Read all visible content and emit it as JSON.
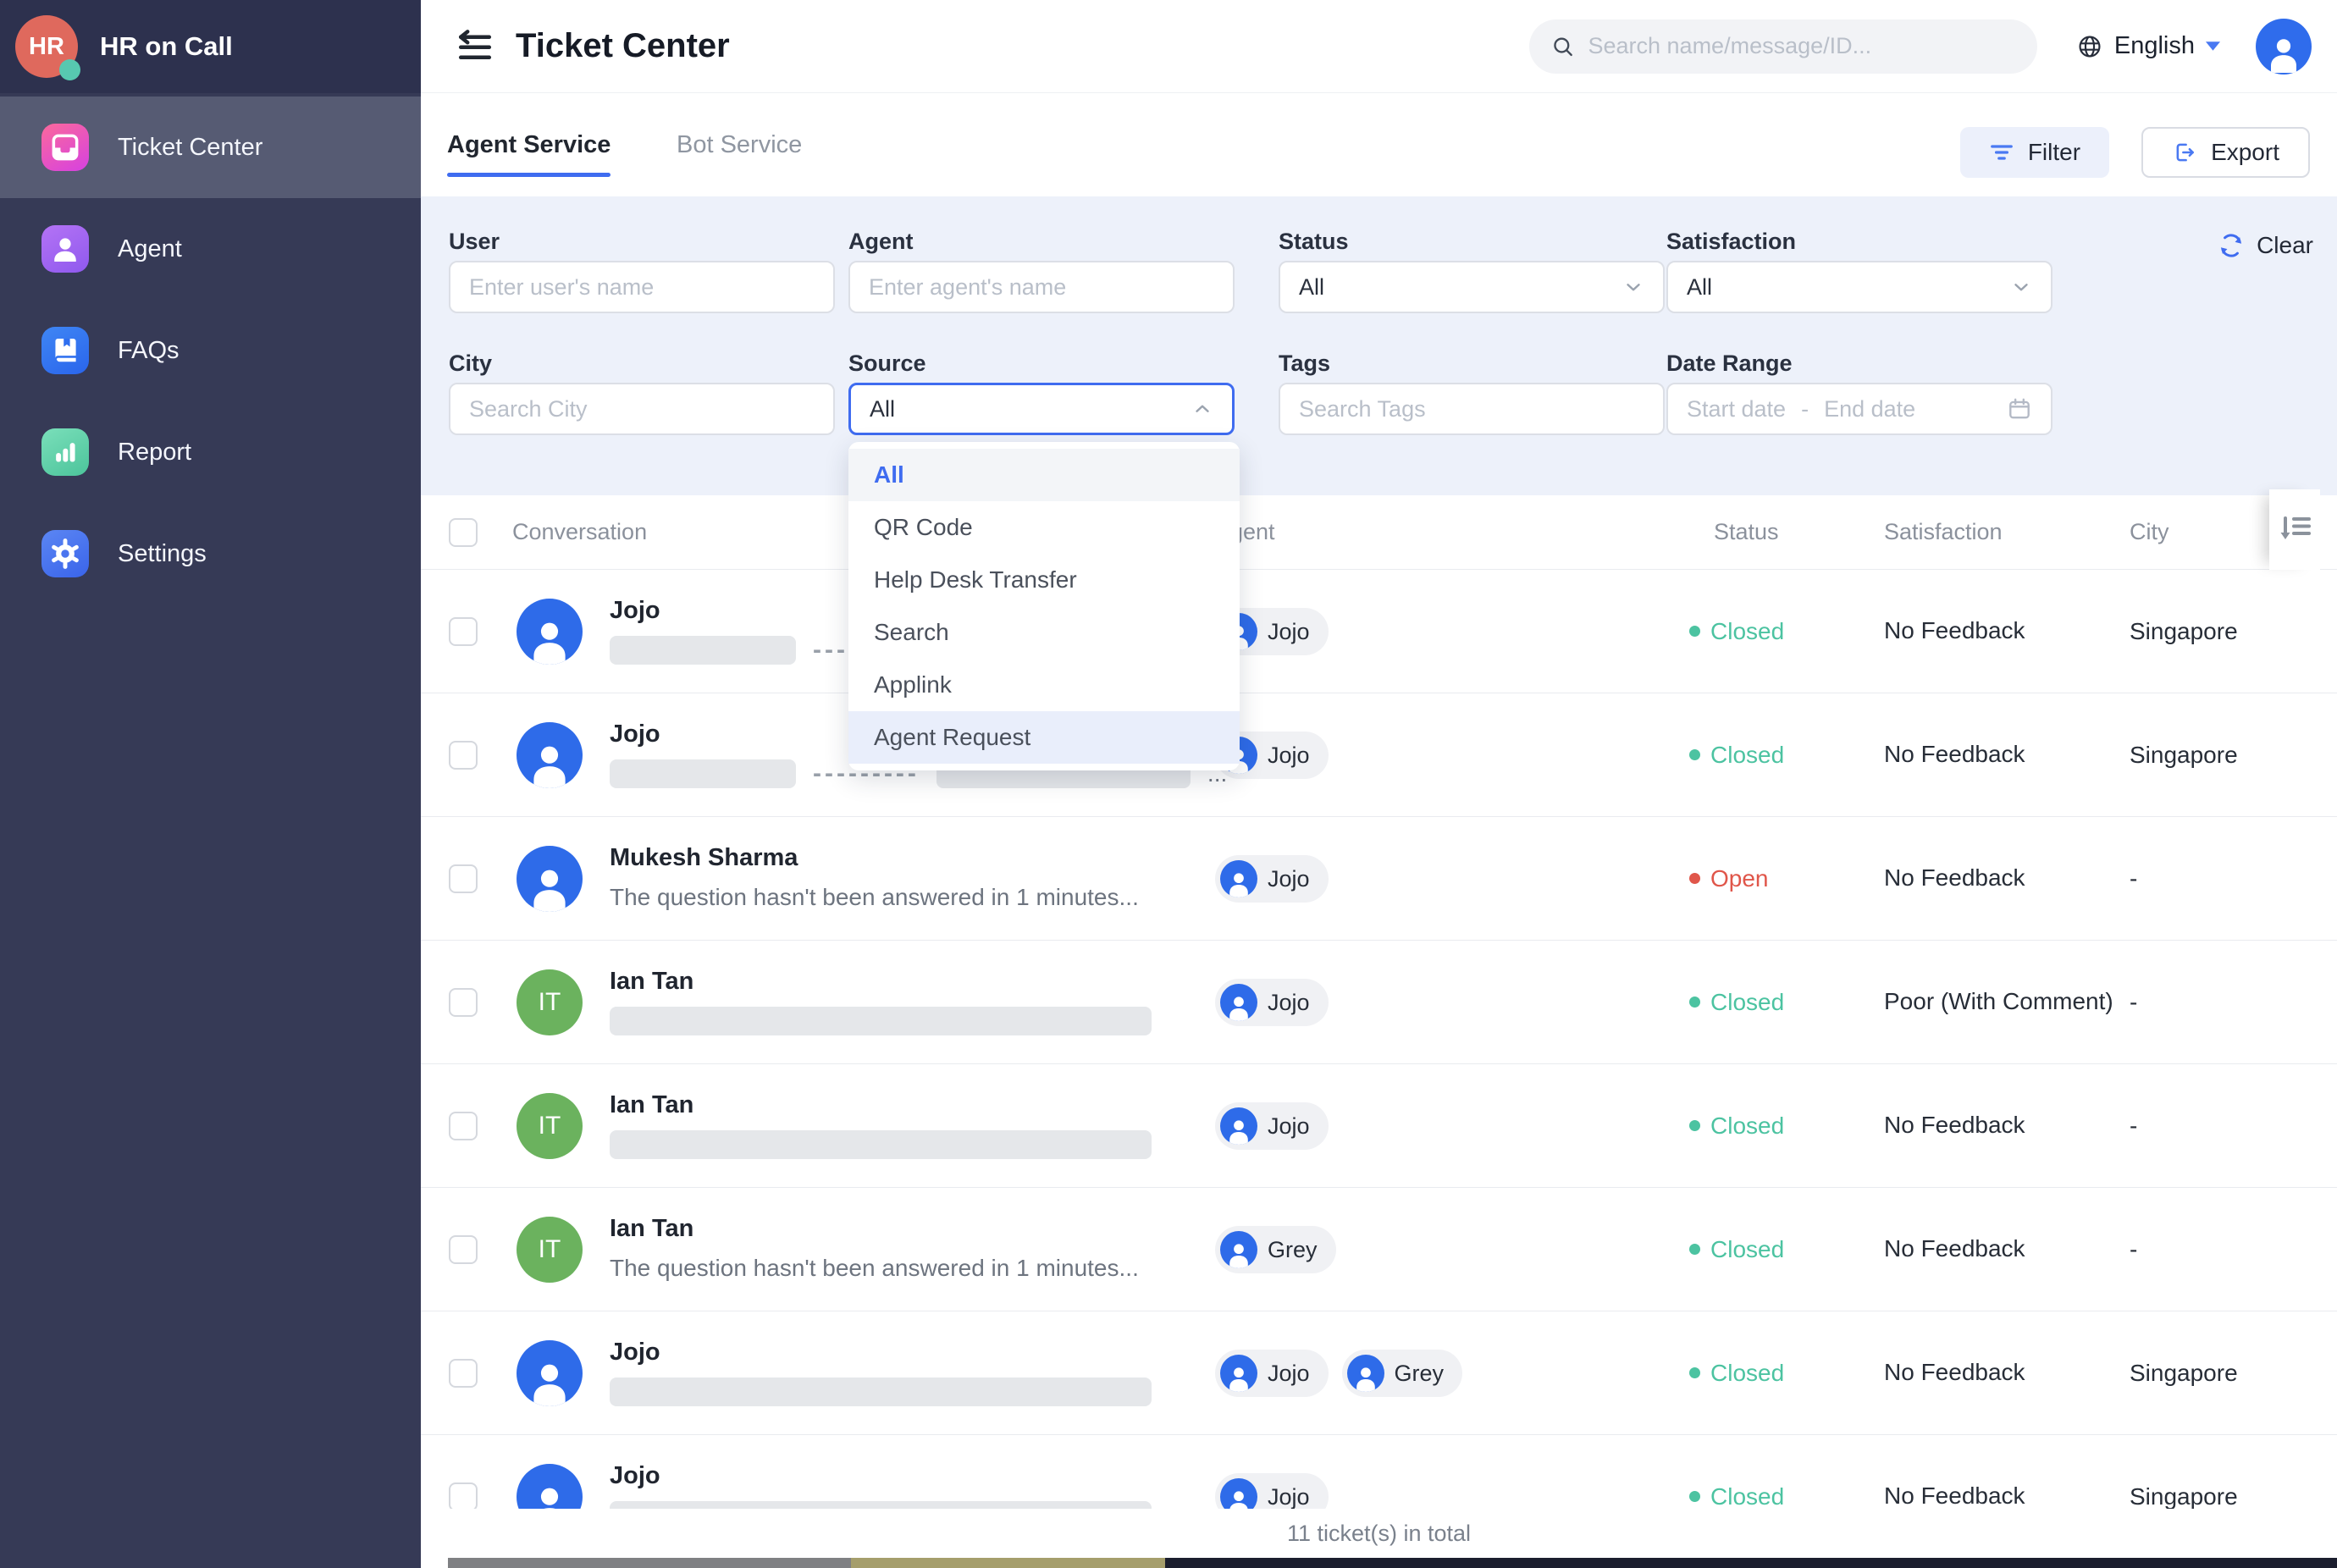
{
  "app": {
    "brand": "HR on Call",
    "logo_initials": "HR"
  },
  "sidebar": {
    "items": [
      {
        "label": "Ticket Center",
        "icon": "ticket-center-icon",
        "active": true
      },
      {
        "label": "Agent",
        "icon": "agent-icon",
        "active": false
      },
      {
        "label": "FAQs",
        "icon": "faqs-icon",
        "active": false
      },
      {
        "label": "Report",
        "icon": "report-icon",
        "active": false
      },
      {
        "label": "Settings",
        "icon": "settings-icon",
        "active": false
      }
    ]
  },
  "topbar": {
    "title": "Ticket Center",
    "search_placeholder": "Search name/message/ID...",
    "language": "English"
  },
  "tabs": [
    {
      "label": "Agent Service",
      "active": true
    },
    {
      "label": "Bot Service",
      "active": false
    }
  ],
  "actions": {
    "filter": "Filter",
    "export": "Export",
    "clear": "Clear"
  },
  "filters": {
    "user": {
      "label": "User",
      "placeholder": "Enter user's name"
    },
    "agent": {
      "label": "Agent",
      "placeholder": "Enter agent's name"
    },
    "status": {
      "label": "Status",
      "value": "All"
    },
    "satisfaction": {
      "label": "Satisfaction",
      "value": "All"
    },
    "city": {
      "label": "City",
      "placeholder": "Search City"
    },
    "source": {
      "label": "Source",
      "value": "All",
      "open": true
    },
    "tags": {
      "label": "Tags",
      "placeholder": "Search Tags"
    },
    "date_range": {
      "label": "Date Range",
      "start_placeholder": "Start date",
      "separator": "-",
      "end_placeholder": "End date"
    }
  },
  "source_dropdown": {
    "options": [
      {
        "label": "All",
        "selected": true
      },
      {
        "label": "QR Code"
      },
      {
        "label": "Help Desk Transfer"
      },
      {
        "label": "Search"
      },
      {
        "label": "Applink"
      },
      {
        "label": "Agent Request",
        "hovered": true
      }
    ]
  },
  "table": {
    "headers": [
      "Conversation",
      "Agent",
      "Status",
      "Satisfaction",
      "City"
    ],
    "rows": [
      {
        "name": "Jojo",
        "avatar": {
          "type": "person",
          "color": "blue"
        },
        "preview": [
          {
            "kind": "bar_short"
          },
          {
            "kind": "dashes"
          },
          {
            "kind": "bar_medium"
          }
        ],
        "agents": [
          "Jojo"
        ],
        "status": "Closed",
        "satisfaction": "No Feedback",
        "city": "Singapore"
      },
      {
        "name": "Jojo",
        "avatar": {
          "type": "person",
          "color": "blue"
        },
        "preview": [
          {
            "kind": "bar_short"
          },
          {
            "kind": "dashes"
          },
          {
            "kind": "bar_medium"
          },
          {
            "kind": "ellipsis"
          }
        ],
        "agents": [
          "Jojo"
        ],
        "status": "Closed",
        "satisfaction": "No Feedback",
        "city": "Singapore"
      },
      {
        "name": "Mukesh Sharma",
        "avatar": {
          "type": "person",
          "color": "blue"
        },
        "preview": [
          {
            "kind": "text",
            "text": "The question hasn't been answered in 1 minutes..."
          }
        ],
        "agents": [
          "Jojo"
        ],
        "status": "Open",
        "satisfaction": "No Feedback",
        "city": "-"
      },
      {
        "name": "Ian Tan",
        "avatar": {
          "type": "initials",
          "initials": "IT",
          "color": "green"
        },
        "preview": [
          {
            "kind": "bar_long"
          }
        ],
        "agents": [
          "Jojo"
        ],
        "status": "Closed",
        "satisfaction": "Poor (With Comment)",
        "city": "-"
      },
      {
        "name": "Ian Tan",
        "avatar": {
          "type": "initials",
          "initials": "IT",
          "color": "green"
        },
        "preview": [
          {
            "kind": "bar_long"
          }
        ],
        "agents": [
          "Jojo"
        ],
        "status": "Closed",
        "satisfaction": "No Feedback",
        "city": "-"
      },
      {
        "name": "Ian Tan",
        "avatar": {
          "type": "initials",
          "initials": "IT",
          "color": "green"
        },
        "preview": [
          {
            "kind": "text",
            "text": "The question hasn't been answered in 1 minutes..."
          }
        ],
        "agents": [
          "Grey"
        ],
        "status": "Closed",
        "satisfaction": "No Feedback",
        "city": "-"
      },
      {
        "name": "Jojo",
        "avatar": {
          "type": "person",
          "color": "blue"
        },
        "preview": [
          {
            "kind": "bar_long"
          }
        ],
        "agents": [
          "Jojo",
          "Grey"
        ],
        "status": "Closed",
        "satisfaction": "No Feedback",
        "city": "Singapore"
      },
      {
        "name": "Jojo",
        "avatar": {
          "type": "person",
          "color": "blue"
        },
        "preview": [
          {
            "kind": "bar_long"
          }
        ],
        "agents": [
          "Jojo"
        ],
        "status": "Closed",
        "satisfaction": "No Feedback",
        "city": "Singapore"
      }
    ],
    "total": "11 ticket(s) in total"
  },
  "colors": {
    "accent_blue": "#3f6cf0",
    "status_closed": "#4cc3a1",
    "status_open": "#e0564a",
    "sidebar_bg": "#363a56",
    "sidebar_active_bg": "#565b73",
    "filter_panel_bg": "#edf1fa",
    "avatar_blue": "#2e6be9",
    "avatar_green": "#6bb25e",
    "logo_red": "#df695d",
    "logo_dot_teal": "#57c8b0"
  }
}
